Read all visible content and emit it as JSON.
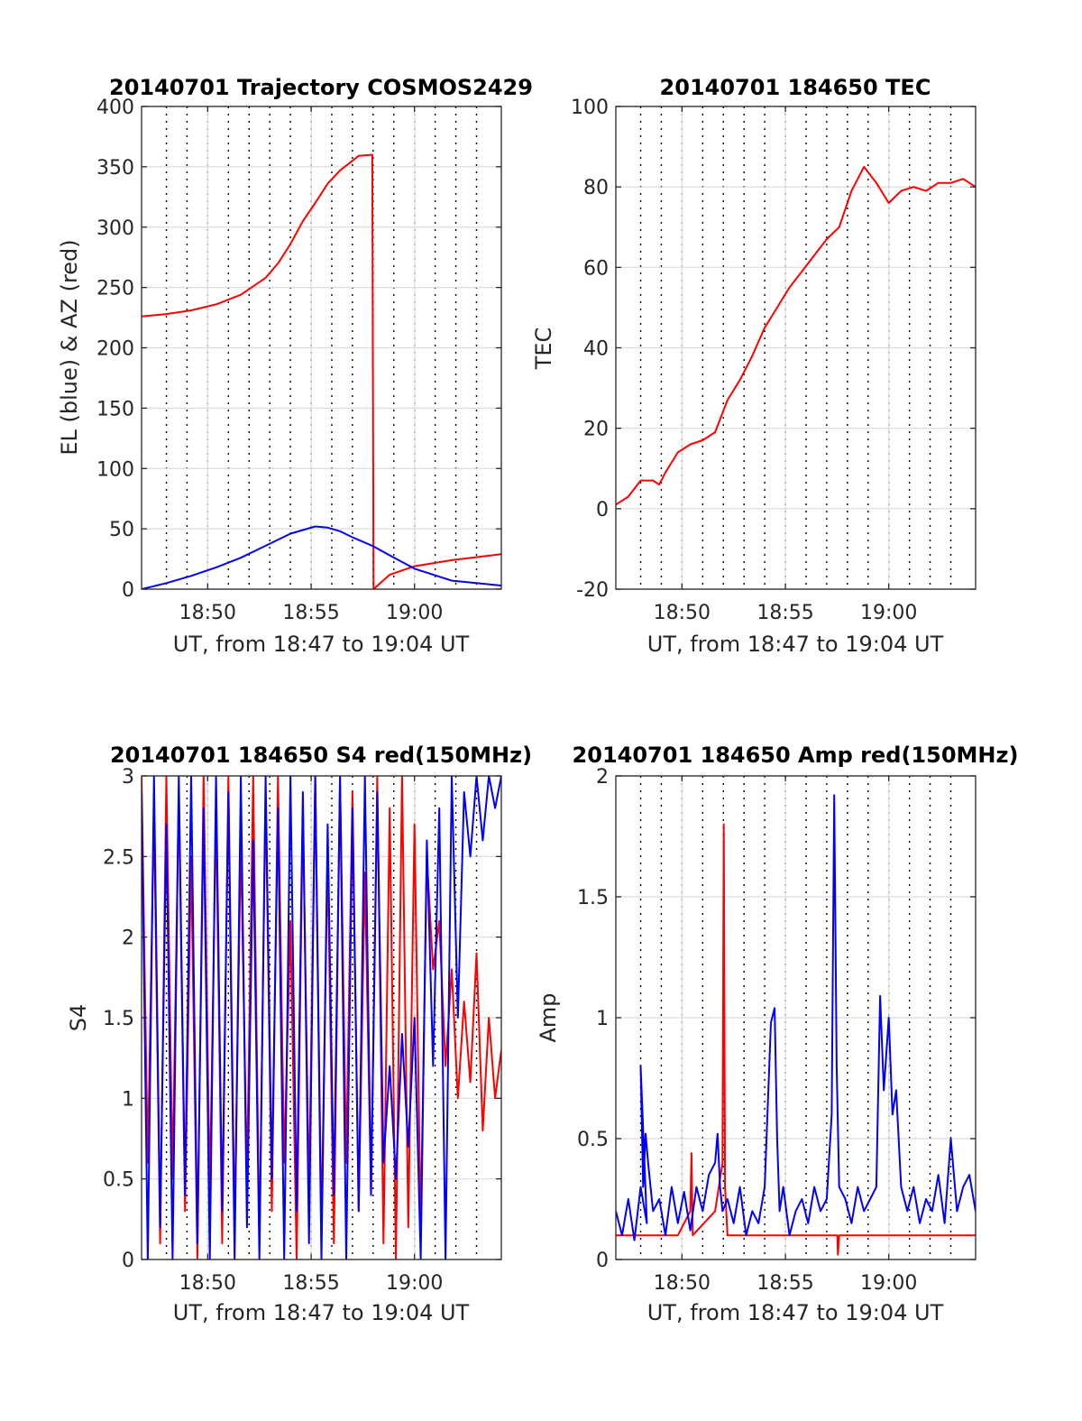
{
  "colors": {
    "az": "#ff0000",
    "el": "#0000ff",
    "red": "#ff0000",
    "blue": "#0000ff",
    "grid": "#dcdcdc",
    "minor_grid": "#000000",
    "axis": "#262626"
  },
  "chart_data": [
    {
      "id": "trajectory",
      "type": "line",
      "title": "20140701 Trajectory COSMOS2429",
      "xlabel": "UT, from 18:47 to 19:04 UT",
      "ylabel": "EL (blue) & AZ (red)",
      "xlim": [
        18.78,
        19.07
      ],
      "ylim": [
        0,
        400
      ],
      "xticks": [
        18.8333,
        18.9167,
        19.0
      ],
      "xtick_labels": [
        "18:50",
        "18:55",
        "19:00"
      ],
      "yticks": [
        0,
        50,
        100,
        150,
        200,
        250,
        300,
        350,
        400
      ],
      "ytick_labels": [
        "0",
        "50",
        "100",
        "150",
        "200",
        "250",
        "300",
        "350",
        "400"
      ],
      "grid": true,
      "minor_x_grid": true,
      "series": [
        {
          "color": "#ff0000",
          "x": [
            18.78,
            18.8,
            18.82,
            18.84,
            18.86,
            18.88,
            18.89,
            18.9,
            18.91,
            18.92,
            18.93,
            18.94,
            18.955,
            18.966,
            18.967,
            18.98,
            19.0,
            19.03,
            19.07
          ],
          "y": [
            226,
            228,
            231,
            236,
            244,
            258,
            270,
            286,
            305,
            320,
            336,
            347,
            359,
            360,
            0,
            12,
            19,
            24,
            29
          ]
        },
        {
          "color": "#0000ff",
          "x": [
            18.78,
            18.8,
            18.82,
            18.84,
            18.86,
            18.88,
            18.9,
            18.92,
            18.93,
            18.94,
            18.95,
            18.966,
            18.98,
            19.0,
            19.03,
            19.07
          ],
          "y": [
            0,
            5,
            11,
            18,
            26,
            36,
            46,
            52,
            51,
            48,
            43,
            36,
            28,
            17,
            7,
            3
          ]
        }
      ]
    },
    {
      "id": "tec",
      "type": "line",
      "title": "20140701 184650 TEC",
      "xlabel": "UT, from 18:47 to 19:04 UT",
      "ylabel": "TEC",
      "xlim": [
        18.78,
        19.07
      ],
      "ylim": [
        -20,
        100
      ],
      "xticks": [
        18.8333,
        18.9167,
        19.0
      ],
      "xtick_labels": [
        "18:50",
        "18:55",
        "19:00"
      ],
      "yticks": [
        -20,
        0,
        20,
        40,
        60,
        80,
        100
      ],
      "ytick_labels": [
        "-20",
        "0",
        "20",
        "40",
        "60",
        "80",
        "100"
      ],
      "grid": true,
      "minor_x_grid": true,
      "series": [
        {
          "color": "#ff0000",
          "x": [
            18.78,
            18.79,
            18.8,
            18.81,
            18.815,
            18.82,
            18.83,
            18.84,
            18.85,
            18.86,
            18.87,
            18.88,
            18.89,
            18.9,
            18.91,
            18.92,
            18.93,
            18.94,
            18.95,
            18.96,
            18.97,
            18.98,
            18.99,
            19.0,
            19.01,
            19.02,
            19.03,
            19.04,
            19.05,
            19.06,
            19.07
          ],
          "y": [
            1,
            3,
            7,
            7,
            6,
            9,
            14,
            16,
            17,
            19,
            27,
            32,
            38,
            45,
            50,
            55,
            59,
            63,
            67,
            70,
            79,
            85,
            81,
            76,
            79,
            80,
            79,
            81,
            81,
            82,
            80
          ]
        }
      ]
    },
    {
      "id": "s4",
      "type": "line",
      "title": "20140701 184650 S4 red(150MHz)",
      "xlabel": "UT, from 18:47 to 19:04 UT",
      "ylabel": "S4",
      "xlim": [
        18.78,
        19.07
      ],
      "ylim": [
        0,
        3
      ],
      "xticks": [
        18.8333,
        18.9167,
        19.0
      ],
      "xtick_labels": [
        "18:50",
        "18:55",
        "19:00"
      ],
      "yticks": [
        0,
        0.5,
        1,
        1.5,
        2,
        2.5,
        3
      ],
      "ytick_labels": [
        "0",
        "0.5",
        "1",
        "1.5",
        "2",
        "2.5",
        "3"
      ],
      "grid": true,
      "minor_x_grid": true,
      "series": [
        {
          "color": "#ff0000",
          "x": [
            18.78,
            18.785,
            18.79,
            18.795,
            18.8,
            18.805,
            18.81,
            18.815,
            18.82,
            18.825,
            18.83,
            18.835,
            18.84,
            18.845,
            18.85,
            18.855,
            18.86,
            18.865,
            18.87,
            18.875,
            18.88,
            18.885,
            18.89,
            18.895,
            18.9,
            18.905,
            18.91,
            18.915,
            18.92,
            18.925,
            18.93,
            18.935,
            18.94,
            18.945,
            18.95,
            18.955,
            18.96,
            18.965,
            18.97,
            18.975,
            18.98,
            18.985,
            18.99,
            18.995,
            19.0,
            19.005,
            19.01,
            19.015,
            19.02,
            19.025,
            19.03,
            19.035,
            19.04,
            19.045,
            19.05,
            19.055,
            19.06,
            19.065,
            19.07
          ],
          "y": [
            3,
            0.6,
            2.8,
            0.1,
            3,
            0.5,
            2.9,
            0.3,
            2.5,
            0,
            3,
            0.4,
            2.8,
            0.1,
            3,
            0.2,
            2.6,
            0.5,
            3,
            0.1,
            2.9,
            0.3,
            3,
            0.6,
            2.1,
            0,
            2.8,
            0.4,
            3,
            0.2,
            2.5,
            0.1,
            3,
            0.6,
            2.9,
            0.3,
            2.4,
            0.4,
            3,
            0.1,
            2.8,
            0,
            3,
            0.2,
            2.7,
            0.2,
            2.5,
            1.8,
            2.1,
            1.2,
            1.8,
            1.0,
            1.6,
            1.1,
            1.9,
            0.8,
            1.5,
            1.0,
            1.3
          ]
        },
        {
          "color": "#0000ff",
          "x": [
            18.78,
            18.785,
            18.79,
            18.795,
            18.8,
            18.805,
            18.81,
            18.815,
            18.82,
            18.825,
            18.83,
            18.835,
            18.84,
            18.845,
            18.85,
            18.855,
            18.86,
            18.865,
            18.87,
            18.875,
            18.88,
            18.885,
            18.89,
            18.895,
            18.9,
            18.905,
            18.91,
            18.915,
            18.92,
            18.925,
            18.93,
            18.935,
            18.94,
            18.945,
            18.95,
            18.955,
            18.96,
            18.965,
            18.97,
            18.975,
            18.98,
            18.985,
            18.99,
            18.995,
            19.0,
            19.005,
            19.01,
            19.015,
            19.02,
            19.025,
            19.03,
            19.035,
            19.04,
            19.045,
            19.05,
            19.055,
            19.06,
            19.065,
            19.07
          ],
          "y": [
            2.9,
            0,
            3,
            0.2,
            2.7,
            0,
            3,
            0.4,
            3,
            0.1,
            2.8,
            0,
            3,
            0.3,
            2.9,
            0,
            3,
            0.2,
            2.6,
            0,
            3,
            0.5,
            2.8,
            0,
            3,
            0.3,
            2.9,
            0.1,
            3,
            0,
            2.7,
            0.4,
            3,
            0,
            2.8,
            0.3,
            3,
            0.4,
            2.9,
            0.6,
            1.2,
            0.5,
            1.4,
            0.7,
            1.5,
            0,
            2.6,
            1.2,
            2.8,
            0,
            3,
            1.5,
            2.9,
            2.5,
            3,
            2.6,
            3,
            2.8,
            3
          ]
        }
      ]
    },
    {
      "id": "amp",
      "type": "line",
      "title": "20140701 184650 Amp red(150MHz)",
      "xlabel": "UT, from 18:47 to 19:04 UT",
      "ylabel": "Amp",
      "xlim": [
        18.78,
        19.07
      ],
      "ylim": [
        0,
        2
      ],
      "xticks": [
        18.8333,
        18.9167,
        19.0
      ],
      "xtick_labels": [
        "18:50",
        "18:55",
        "19:00"
      ],
      "yticks": [
        0,
        0.5,
        1,
        1.5,
        2
      ],
      "ytick_labels": [
        "0",
        "0.5",
        "1",
        "1.5",
        "2"
      ],
      "grid": true,
      "minor_x_grid": true,
      "series": [
        {
          "color": "#ff0000",
          "x": [
            18.78,
            18.83,
            18.84,
            18.841,
            18.842,
            18.86,
            18.866,
            18.867,
            18.868,
            18.87,
            18.92,
            18.9585,
            18.959,
            18.96,
            19.07
          ],
          "y": [
            0.1,
            0.1,
            0.2,
            0.44,
            0.1,
            0.2,
            0.4,
            1.8,
            0.3,
            0.1,
            0.1,
            0.1,
            0.02,
            0.1,
            0.1
          ]
        },
        {
          "color": "#0000ff",
          "x": [
            18.78,
            18.785,
            18.79,
            18.795,
            18.8,
            18.805,
            18.8,
            18.802,
            18.804,
            18.806,
            18.808,
            18.81,
            18.815,
            18.82,
            18.825,
            18.83,
            18.835,
            18.84,
            18.845,
            18.85,
            18.855,
            18.86,
            18.862,
            18.864,
            18.866,
            18.87,
            18.875,
            18.88,
            18.885,
            18.89,
            18.895,
            18.9,
            18.905,
            18.908,
            18.91,
            18.912,
            18.915,
            18.92,
            18.925,
            18.93,
            18.935,
            18.94,
            18.945,
            18.95,
            18.954,
            18.956,
            18.958,
            18.96,
            18.965,
            18.97,
            18.975,
            18.98,
            18.985,
            18.99,
            18.993,
            18.996,
            19.0,
            19.003,
            19.006,
            19.01,
            19.015,
            19.02,
            19.025,
            19.03,
            19.035,
            19.04,
            19.045,
            19.05,
            19.055,
            19.06,
            19.065,
            19.07
          ],
          "y": [
            0.2,
            0.1,
            0.25,
            0.08,
            0.3,
            0.15,
            0.8,
            0.3,
            0.52,
            0.4,
            0.3,
            0.2,
            0.25,
            0.1,
            0.3,
            0.15,
            0.28,
            0.12,
            0.3,
            0.2,
            0.35,
            0.4,
            0.52,
            0.3,
            0.2,
            0.25,
            0.15,
            0.3,
            0.1,
            0.2,
            0.15,
            0.3,
            0.98,
            1.04,
            0.5,
            0.2,
            0.3,
            0.1,
            0.2,
            0.25,
            0.15,
            0.3,
            0.2,
            0.25,
            0.6,
            1.92,
            0.8,
            0.3,
            0.25,
            0.15,
            0.3,
            0.2,
            0.25,
            0.3,
            1.09,
            0.7,
            1.0,
            0.6,
            0.7,
            0.3,
            0.2,
            0.3,
            0.15,
            0.25,
            0.2,
            0.35,
            0.15,
            0.5,
            0.2,
            0.3,
            0.35,
            0.2
          ]
        }
      ]
    }
  ]
}
